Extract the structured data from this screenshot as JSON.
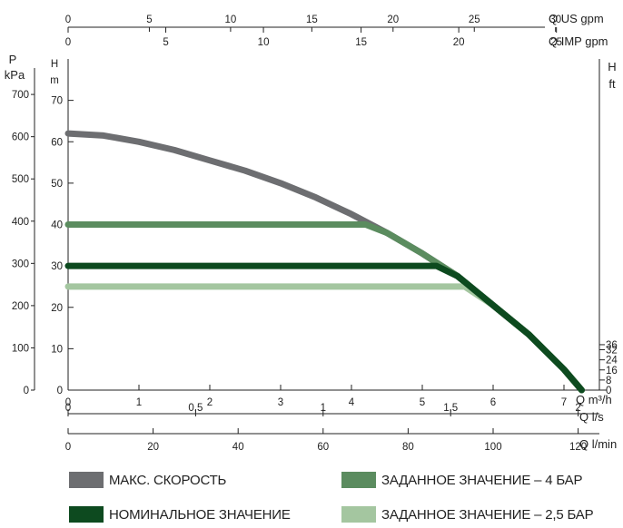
{
  "chart_data": {
    "type": "line",
    "axes": {
      "q_us_gpm": {
        "label": "Q US gpm",
        "ticks": [
          0,
          5,
          10,
          15,
          20,
          25,
          30
        ],
        "range": [
          0,
          32.7
        ]
      },
      "q_imp_gpm": {
        "label": "Q IMP gpm",
        "ticks": [
          0,
          5,
          10,
          15,
          20,
          25
        ],
        "range": [
          0,
          27.2
        ]
      },
      "p_kpa": {
        "label_line1": "P",
        "label_line2": "kPa",
        "ticks": [
          0,
          100,
          200,
          300,
          400,
          500,
          600,
          700
        ],
        "range": [
          0,
          784
        ]
      },
      "h_m": {
        "label_line1": "H",
        "label_line2": "m",
        "ticks": [
          0,
          10,
          20,
          30,
          40,
          50,
          60,
          70
        ],
        "range": [
          0,
          80
        ]
      },
      "h_ft": {
        "label_line1": "H",
        "label_line2": "ft",
        "ticks": [
          0,
          8,
          16,
          24,
          32,
          36
        ],
        "range": [
          0,
          262.5
        ]
      },
      "q_m3h": {
        "label": "Q m³/h",
        "ticks": [
          0,
          1,
          2,
          3,
          4,
          5,
          6,
          7
        ],
        "range": [
          0,
          7.5
        ]
      },
      "q_ls": {
        "label": "Q l/s",
        "ticks": [
          "0",
          "0,5",
          "1",
          "1,5",
          "2"
        ],
        "tick_values": [
          0,
          0.5,
          1,
          1.5,
          2
        ],
        "range": [
          0,
          2.0833
        ]
      },
      "q_lmin": {
        "label": "Q l/min",
        "ticks": [
          0,
          20,
          40,
          60,
          80,
          100,
          120
        ],
        "range": [
          0,
          125
        ]
      }
    },
    "series": [
      {
        "name": "МАКС. СКОРОСТЬ",
        "color": "#6d6e71",
        "x": [
          0,
          0.5,
          1,
          1.5,
          2,
          2.5,
          3,
          3.5,
          4,
          4.5,
          5,
          5.5,
          6,
          6.5,
          7,
          7.25
        ],
        "y": [
          62,
          61.5,
          60,
          58,
          55.5,
          53,
          50,
          46.5,
          42.5,
          38,
          33,
          27.5,
          20.5,
          13.5,
          5,
          0
        ]
      },
      {
        "name": "ЗАДАННОЕ ЗНАЧЕНИЕ – 4 БАР",
        "color": "#5b8c5f",
        "x": [
          0,
          4.2,
          4.5,
          5,
          5.5,
          6,
          6.5,
          7,
          7.25
        ],
        "y": [
          40,
          40,
          38,
          33,
          27.5,
          20.5,
          13.5,
          5,
          0
        ]
      },
      {
        "name": "НОМИНАЛЬНОЕ ЗНАЧЕНИЕ",
        "color": "#0d4a1f",
        "x": [
          0,
          5.2,
          5.5,
          6,
          6.5,
          7,
          7.25
        ],
        "y": [
          30,
          30,
          27.5,
          20.5,
          13.5,
          5,
          0
        ]
      },
      {
        "name": "ЗАДАННОЕ ЗНАЧЕНИЕ – 2,5 БАР",
        "color": "#a4c6a0",
        "x": [
          0,
          5.6,
          6,
          6.5,
          7,
          7.25
        ],
        "y": [
          25,
          25,
          20.5,
          13.5,
          5,
          0
        ]
      }
    ]
  },
  "legend": [
    {
      "name": "МАКС. СКОРОСТЬ",
      "color": "#6d6e71"
    },
    {
      "name": "ЗАДАННОЕ ЗНАЧЕНИЕ – 4 БАР",
      "color": "#5b8c5f"
    },
    {
      "name": "НОМИНАЛЬНОЕ ЗНАЧЕНИЕ",
      "color": "#0d4a1f"
    },
    {
      "name": "ЗАДАННОЕ ЗНАЧЕНИЕ – 2,5 БАР",
      "color": "#a4c6a0"
    }
  ]
}
